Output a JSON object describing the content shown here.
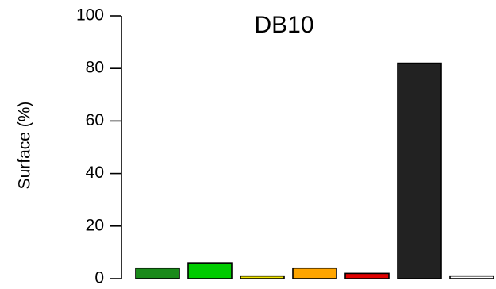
{
  "chart_data": {
    "type": "bar",
    "title": "DB10",
    "xlabel": "",
    "ylabel": "Surface (%)",
    "ylim": [
      0,
      100
    ],
    "yticks": [
      0,
      20,
      40,
      60,
      80,
      100
    ],
    "categories": [
      "",
      "",
      "",
      "",
      "",
      "",
      ""
    ],
    "values": [
      4,
      6,
      1,
      4,
      2,
      82,
      1
    ],
    "colors": [
      "#1a8a1a",
      "#00cc00",
      "#f2e600",
      "#ffa500",
      "#e00000",
      "#222222",
      "#ffffff"
    ],
    "grid": false
  }
}
